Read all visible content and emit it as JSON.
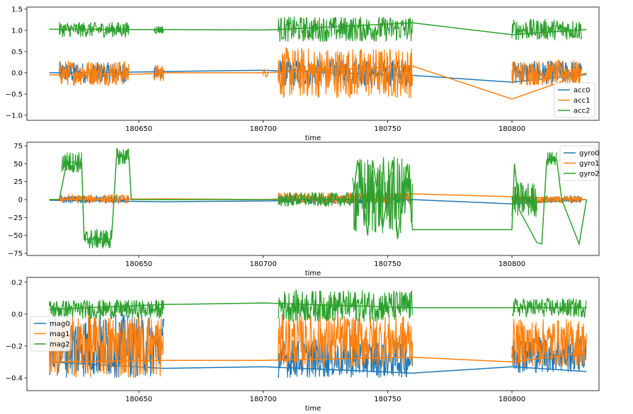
{
  "figure": {
    "background": "#ffffff"
  },
  "chart_data": [
    {
      "type": "line",
      "xlabel": "time",
      "ylabel": "",
      "xlim": [
        180605,
        180835
      ],
      "ylim": [
        -1.12,
        1.55
      ],
      "xticks": [
        180650,
        180700,
        180750,
        180800
      ],
      "xtick_labels": [
        "180650",
        "180700",
        "180750",
        "180800"
      ],
      "yticks": [
        -1.0,
        -0.5,
        0.0,
        0.5,
        1.0,
        1.5
      ],
      "ytick_labels": [
        "−1.0",
        "−0.5",
        "0.0",
        "0.5",
        "1.0",
        "1.5"
      ],
      "legend": {
        "position": "lower-right",
        "entries": [
          "acc0",
          "acc1",
          "acc2"
        ]
      },
      "grid": false,
      "series": [
        {
          "name": "acc0",
          "color": "#1f77b4",
          "points": [
            [
              180614,
              0.0
            ],
            [
              180650,
              0.02
            ],
            [
              180660,
              0.03
            ],
            [
              180700,
              0.06
            ],
            [
              180760,
              -0.06
            ],
            [
              180800,
              -0.22
            ],
            [
              180830,
              -0.04
            ]
          ],
          "noisy": [
            {
              "x0": 180618,
              "x1": 180646,
              "center": 0.0,
              "amp": 0.25,
              "n": 170
            },
            {
              "x0": 180656,
              "x1": 180660,
              "center": 0.0,
              "amp": 0.15,
              "n": 30
            },
            {
              "x0": 180706,
              "x1": 180760,
              "center": 0.0,
              "amp": 0.32,
              "n": 300
            },
            {
              "x0": 180800,
              "x1": 180828,
              "center": 0.0,
              "amp": 0.28,
              "n": 160
            }
          ]
        },
        {
          "name": "acc1",
          "color": "#ff7f0e",
          "points": [
            [
              180614,
              -0.05
            ],
            [
              180650,
              -0.03
            ],
            [
              180660,
              0.0
            ],
            [
              180700,
              0.0
            ],
            [
              180760,
              0.16
            ],
            [
              180800,
              -0.62
            ],
            [
              180830,
              0.0
            ]
          ],
          "noisy": [
            {
              "x0": 180618,
              "x1": 180646,
              "center": 0.0,
              "amp": 0.3,
              "n": 170
            },
            {
              "x0": 180656,
              "x1": 180660,
              "center": 0.0,
              "amp": 0.2,
              "n": 30
            },
            {
              "x0": 180700,
              "x1": 180702,
              "center": 0.0,
              "amp": 0.1,
              "n": 12
            },
            {
              "x0": 180706,
              "x1": 180760,
              "center": 0.0,
              "amp": 0.6,
              "n": 320
            },
            {
              "x0": 180800,
              "x1": 180828,
              "center": 0.0,
              "amp": 0.3,
              "n": 160
            }
          ]
        },
        {
          "name": "acc2",
          "color": "#2ca02c",
          "points": [
            [
              180614,
              1.03
            ],
            [
              180650,
              1.02
            ],
            [
              180660,
              1.02
            ],
            [
              180700,
              1.01
            ],
            [
              180706,
              1.02
            ],
            [
              180760,
              1.18
            ],
            [
              180800,
              0.9
            ],
            [
              180830,
              1.02
            ]
          ],
          "noisy": [
            {
              "x0": 180618,
              "x1": 180646,
              "center": 1.02,
              "amp": 0.18,
              "n": 170
            },
            {
              "x0": 180656,
              "x1": 180660,
              "center": 1.02,
              "amp": 0.1,
              "n": 30
            },
            {
              "x0": 180706,
              "x1": 180760,
              "center": 1.03,
              "amp": 0.3,
              "n": 300
            },
            {
              "x0": 180800,
              "x1": 180828,
              "center": 1.02,
              "amp": 0.25,
              "n": 160
            }
          ]
        }
      ]
    },
    {
      "type": "line",
      "xlabel": "time",
      "ylabel": "",
      "xlim": [
        180605,
        180835
      ],
      "ylim": [
        -78,
        80
      ],
      "xticks": [
        180650,
        180700,
        180750,
        180800
      ],
      "xtick_labels": [
        "180650",
        "180700",
        "180750",
        "180800"
      ],
      "yticks": [
        -75,
        -50,
        -25,
        0,
        25,
        50,
        75
      ],
      "ytick_labels": [
        "−75",
        "−50",
        "−25",
        "0",
        "25",
        "50",
        "75"
      ],
      "legend": {
        "position": "upper-right",
        "entries": [
          "gyro0",
          "gyro1",
          "gyro2"
        ]
      },
      "grid": false,
      "series": [
        {
          "name": "gyro0",
          "color": "#1f77b4",
          "points": [
            [
              180614,
              -1
            ],
            [
              180660,
              -3
            ],
            [
              180700,
              -2
            ],
            [
              180760,
              0
            ],
            [
              180800,
              -6
            ],
            [
              180830,
              0
            ]
          ],
          "noisy": [
            {
              "x0": 180618,
              "x1": 180646,
              "center": 0,
              "amp": 5,
              "n": 150
            },
            {
              "x0": 180706,
              "x1": 180760,
              "center": 0,
              "amp": 6,
              "n": 260
            },
            {
              "x0": 180800,
              "x1": 180828,
              "center": 0,
              "amp": 5,
              "n": 150
            }
          ]
        },
        {
          "name": "gyro1",
          "color": "#ff7f0e",
          "points": [
            [
              180614,
              0
            ],
            [
              180660,
              1
            ],
            [
              180700,
              0
            ],
            [
              180760,
              8
            ],
            [
              180800,
              4
            ],
            [
              180830,
              0
            ]
          ],
          "noisy": [
            {
              "x0": 180618,
              "x1": 180646,
              "center": 1,
              "amp": 6,
              "n": 150
            },
            {
              "x0": 180706,
              "x1": 180760,
              "center": 2,
              "amp": 8,
              "n": 260
            },
            {
              "x0": 180800,
              "x1": 180828,
              "center": 0,
              "amp": 5,
              "n": 150
            }
          ]
        },
        {
          "name": "gyro2",
          "color": "#2ca02c",
          "points": [
            [
              180614,
              0
            ],
            [
              180618,
              0
            ],
            [
              180621,
              52
            ],
            [
              180627,
              52
            ],
            [
              180628,
              -55
            ],
            [
              180639,
              -55
            ],
            [
              180640,
              0
            ],
            [
              180641,
              60
            ],
            [
              180646,
              60
            ],
            [
              180647,
              0
            ],
            [
              180660,
              0
            ],
            [
              180700,
              0
            ],
            [
              180706,
              0
            ],
            [
              180736,
              0
            ],
            [
              180738,
              55
            ],
            [
              180742,
              -50
            ],
            [
              180744,
              55
            ],
            [
              180748,
              -40
            ],
            [
              180752,
              55
            ],
            [
              180754,
              -55
            ],
            [
              180758,
              50
            ],
            [
              180760,
              -42
            ],
            [
              180800,
              -42
            ],
            [
              180801,
              50
            ],
            [
              180803,
              -15
            ],
            [
              180810,
              -60
            ],
            [
              180812,
              -62
            ],
            [
              180814,
              55
            ],
            [
              180818,
              55
            ],
            [
              180820,
              0
            ],
            [
              180827,
              -62
            ],
            [
              180830,
              0
            ]
          ],
          "noisy": [
            {
              "x0": 180619,
              "x1": 180627,
              "center": 52,
              "amp": 15,
              "n": 60
            },
            {
              "x0": 180628,
              "x1": 180639,
              "center": -55,
              "amp": 14,
              "n": 80
            },
            {
              "x0": 180641,
              "x1": 180646,
              "center": 60,
              "amp": 12,
              "n": 40
            },
            {
              "x0": 180706,
              "x1": 180736,
              "center": 0,
              "amp": 10,
              "n": 160
            },
            {
              "x0": 180736,
              "x1": 180760,
              "center": 5,
              "amp": 55,
              "n": 140
            },
            {
              "x0": 180800,
              "x1": 180810,
              "center": 0,
              "amp": 25,
              "n": 60
            },
            {
              "x0": 180814,
              "x1": 180818,
              "center": 57,
              "amp": 10,
              "n": 30
            }
          ]
        }
      ]
    },
    {
      "type": "line",
      "xlabel": "time",
      "ylabel": "",
      "xlim": [
        180605,
        180835
      ],
      "ylim": [
        -0.48,
        0.23
      ],
      "xticks": [
        180650,
        180700,
        180750,
        180800
      ],
      "xtick_labels": [
        "180650",
        "180700",
        "180750",
        "180800"
      ],
      "yticks": [
        -0.4,
        -0.2,
        0.0,
        0.2
      ],
      "ytick_labels": [
        "−0.4",
        "−0.2",
        "0.0",
        "0.2"
      ],
      "legend": {
        "position": "center-left",
        "entries": [
          "mag0",
          "mag1",
          "mag2"
        ]
      },
      "grid": false,
      "series": [
        {
          "name": "mag0",
          "color": "#1f77b4",
          "points": [
            [
              180614,
              -0.3
            ],
            [
              180660,
              -0.34
            ],
            [
              180700,
              -0.33
            ],
            [
              180760,
              -0.37
            ],
            [
              180800,
              -0.33
            ],
            [
              180830,
              -0.36
            ]
          ],
          "noisy": [
            {
              "x0": 180614,
              "x1": 180660,
              "center": -0.2,
              "amp": 0.2,
              "n": 260
            },
            {
              "x0": 180706,
              "x1": 180760,
              "center": -0.28,
              "amp": 0.12,
              "n": 300
            },
            {
              "x0": 180800,
              "x1": 180830,
              "center": -0.25,
              "amp": 0.12,
              "n": 170
            }
          ]
        },
        {
          "name": "mag1",
          "color": "#ff7f0e",
          "points": [
            [
              180614,
              -0.3
            ],
            [
              180660,
              -0.29
            ],
            [
              180700,
              -0.29
            ],
            [
              180760,
              -0.27
            ],
            [
              180800,
              -0.3
            ],
            [
              180830,
              -0.24
            ]
          ],
          "noisy": [
            {
              "x0": 180614,
              "x1": 180660,
              "center": -0.2,
              "amp": 0.2,
              "n": 260
            },
            {
              "x0": 180706,
              "x1": 180760,
              "center": -0.17,
              "amp": 0.17,
              "n": 300
            },
            {
              "x0": 180800,
              "x1": 180830,
              "center": -0.18,
              "amp": 0.15,
              "n": 170
            }
          ]
        },
        {
          "name": "mag2",
          "color": "#2ca02c",
          "points": [
            [
              180614,
              0.03
            ],
            [
              180660,
              0.06
            ],
            [
              180700,
              0.07
            ],
            [
              180760,
              0.04
            ],
            [
              180800,
              0.04
            ],
            [
              180830,
              0.04
            ]
          ],
          "noisy": [
            {
              "x0": 180614,
              "x1": 180660,
              "center": 0.03,
              "amp": 0.06,
              "n": 260
            },
            {
              "x0": 180706,
              "x1": 180760,
              "center": 0.05,
              "amp": 0.1,
              "n": 300
            },
            {
              "x0": 180800,
              "x1": 180830,
              "center": 0.04,
              "amp": 0.06,
              "n": 170
            }
          ]
        }
      ]
    }
  ]
}
